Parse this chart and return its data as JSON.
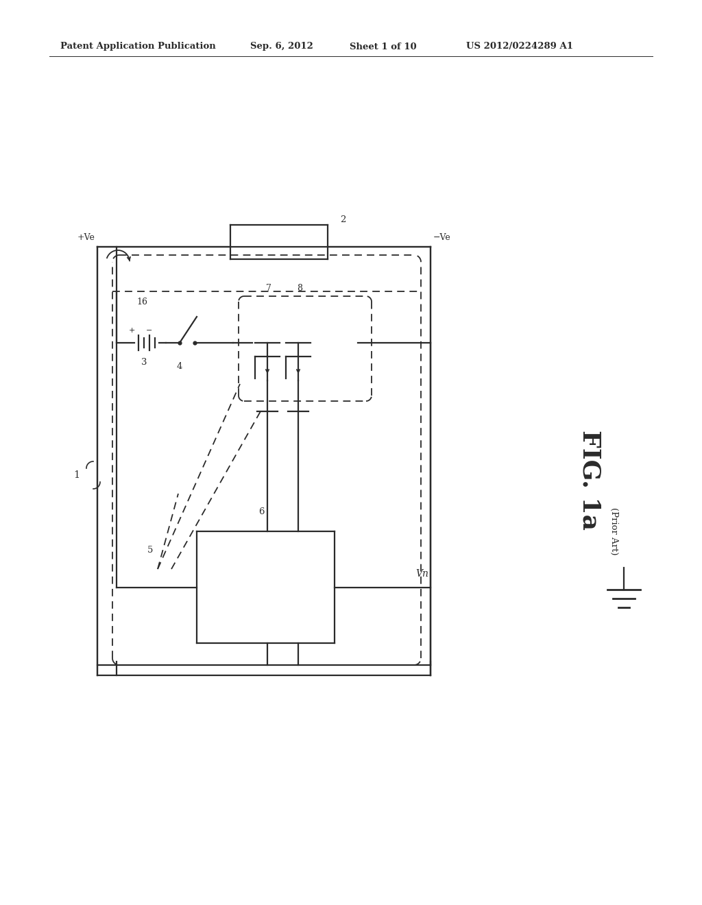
{
  "bg_color": "#ffffff",
  "lc": "#2a2a2a",
  "header_left": "Patent Application Publication",
  "header_date": "Sep. 6, 2012",
  "header_sheet": "Sheet 1 of 10",
  "header_patent": "US 2012/0224289 A1",
  "fig_label": "FIG. 1a",
  "prior_art": "(Prior Art)",
  "label_1": "1",
  "label_2": "2",
  "label_3": "3",
  "label_4": "4",
  "label_5": "5",
  "label_6": "6",
  "label_7": "7",
  "label_8": "8",
  "label_16": "16",
  "label_Vn": "Vn",
  "label_pVe": "+Ve",
  "label_mVe": "−Ve"
}
